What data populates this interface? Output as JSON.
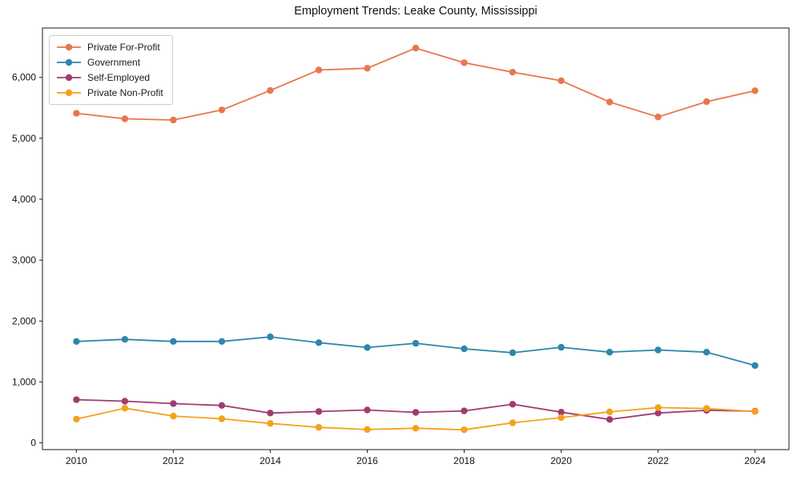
{
  "chart_data": {
    "type": "line",
    "title": "Employment Trends: Leake County, Mississippi",
    "x": [
      2010,
      2011,
      2012,
      2013,
      2014,
      2015,
      2016,
      2017,
      2018,
      2019,
      2020,
      2021,
      2022,
      2023,
      2024
    ],
    "series": [
      {
        "name": "Private For-Profit",
        "color": "#E8764E",
        "values": [
          5410,
          5320,
          5300,
          5465,
          5785,
          6120,
          6150,
          6480,
          6240,
          6085,
          5945,
          5595,
          5350,
          5600,
          5780
        ]
      },
      {
        "name": "Government",
        "color": "#2E86AB",
        "values": [
          1665,
          1700,
          1665,
          1665,
          1740,
          1645,
          1565,
          1635,
          1545,
          1480,
          1570,
          1490,
          1525,
          1490,
          1270
        ]
      },
      {
        "name": "Self-Employed",
        "color": "#A23B72",
        "values": [
          710,
          685,
          645,
          615,
          490,
          515,
          540,
          500,
          525,
          635,
          505,
          385,
          490,
          535,
          520
        ]
      },
      {
        "name": "Private Non-Profit",
        "color": "#F5A11C",
        "values": [
          390,
          570,
          440,
          395,
          320,
          255,
          220,
          240,
          215,
          330,
          415,
          510,
          580,
          565,
          515
        ]
      }
    ],
    "xlabel": "",
    "ylabel": "",
    "xlim": [
      2009.3,
      2024.7
    ],
    "ylim": [
      -110,
      6810
    ],
    "xticks": [
      2010,
      2012,
      2014,
      2016,
      2018,
      2020,
      2022,
      2024
    ],
    "xtick_labels": [
      "2010",
      "2012",
      "2014",
      "2016",
      "2018",
      "2020",
      "2022",
      "2024"
    ],
    "yticks": [
      0,
      1000,
      2000,
      3000,
      4000,
      5000,
      6000
    ],
    "ytick_labels": [
      "0",
      "1,000",
      "2,000",
      "3,000",
      "4,000",
      "5,000",
      "6,000"
    ],
    "legend_position": "upper left",
    "grid": false,
    "axis_color": "#1a1a1a",
    "background_color": "#ffffff",
    "marker": "circle",
    "marker_radius": 4.2,
    "line_width": 1.8
  }
}
